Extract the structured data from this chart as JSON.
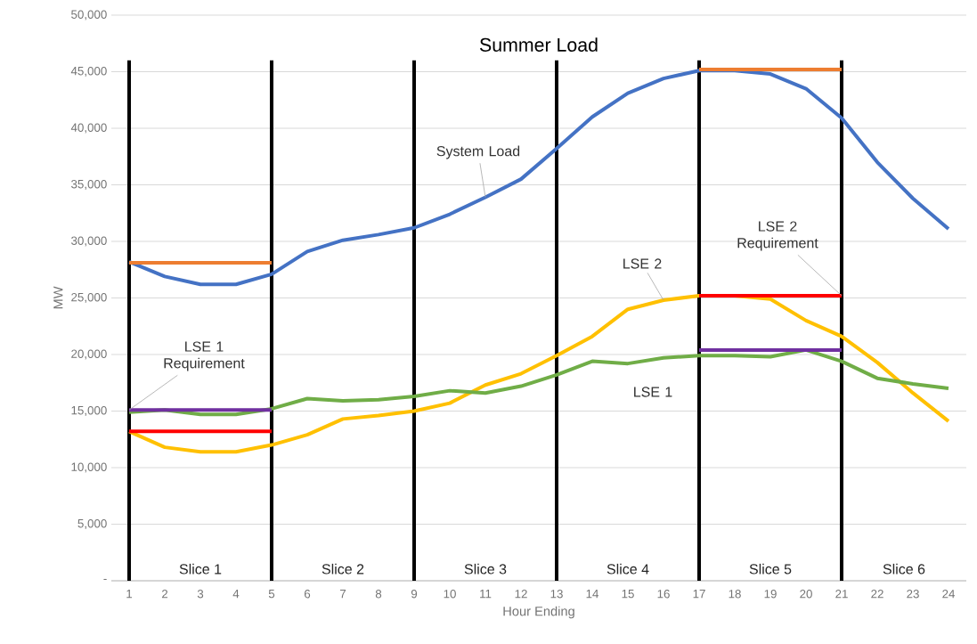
{
  "chart_data": {
    "type": "line",
    "title": "Summer Load",
    "xlabel": "Hour Ending",
    "ylabel": "MW",
    "x": [
      1,
      2,
      3,
      4,
      5,
      6,
      7,
      8,
      9,
      10,
      11,
      12,
      13,
      14,
      15,
      16,
      17,
      18,
      19,
      20,
      21,
      22,
      23,
      24
    ],
    "series": [
      {
        "name": "System Load",
        "color": "#4472c4",
        "values": [
          28200,
          26900,
          26200,
          26200,
          27100,
          29100,
          30100,
          30600,
          31200,
          32400,
          33900,
          35500,
          38200,
          41000,
          43100,
          44400,
          45100,
          45100,
          44800,
          43500,
          40900,
          37000,
          33800,
          31100
        ]
      },
      {
        "name": "LSE 2",
        "color": "#ffc000",
        "values": [
          13200,
          11800,
          11400,
          11400,
          12000,
          12900,
          14300,
          14600,
          15000,
          15700,
          17300,
          18300,
          19900,
          21600,
          24000,
          24800,
          25200,
          25200,
          24900,
          23000,
          21600,
          19300,
          16600,
          14100
        ]
      },
      {
        "name": "LSE 1",
        "color": "#70ad47",
        "values": [
          14900,
          15100,
          14700,
          14700,
          15200,
          16100,
          15900,
          16000,
          16300,
          16800,
          16600,
          17200,
          18200,
          19400,
          19200,
          19700,
          19900,
          19900,
          19800,
          20400,
          19400,
          17900,
          17400,
          17000
        ]
      },
      {
        "color": "#ed7d31",
        "x": [
          1,
          5
        ],
        "values": [
          28100,
          28100
        ]
      },
      {
        "color": "#ed7d31",
        "x": [
          17,
          21
        ],
        "values": [
          45200,
          45200
        ]
      },
      {
        "name": "LSE 1 Requirement",
        "color": "#7030a0",
        "x": [
          1,
          5
        ],
        "values": [
          15100,
          15100
        ]
      },
      {
        "color": "#7030a0",
        "x": [
          17,
          21
        ],
        "values": [
          20400,
          20400
        ]
      },
      {
        "color": "#ff0000",
        "x": [
          1,
          5
        ],
        "values": [
          13200,
          13200
        ]
      },
      {
        "name": "LSE 2 Requirement",
        "color": "#ff0000",
        "x": [
          17,
          21
        ],
        "values": [
          25200,
          25200
        ]
      }
    ],
    "xlim": [
      0.5,
      24.5
    ],
    "xticks": [
      1,
      2,
      3,
      4,
      5,
      6,
      7,
      8,
      9,
      10,
      11,
      12,
      13,
      14,
      15,
      16,
      17,
      18,
      19,
      20,
      21,
      22,
      23,
      24
    ],
    "ylim": [
      0,
      50000
    ],
    "yticks": [
      {
        "value": 0,
        "label": "-"
      },
      {
        "value": 5000,
        "label": "5,000"
      },
      {
        "value": 10000,
        "label": "10,000"
      },
      {
        "value": 15000,
        "label": "15,000"
      },
      {
        "value": 20000,
        "label": "20,000"
      },
      {
        "value": 25000,
        "label": "25,000"
      },
      {
        "value": 30000,
        "label": "30,000"
      },
      {
        "value": 35000,
        "label": "35,000"
      },
      {
        "value": 40000,
        "label": "40,000"
      },
      {
        "value": 45000,
        "label": "45,000"
      },
      {
        "value": 50000,
        "label": "50,000"
      }
    ],
    "grid": "y",
    "marker": "none",
    "line_style": "solid",
    "ref_lines": [
      {
        "axis": "x",
        "value": 1,
        "color": "#000000"
      },
      {
        "axis": "x",
        "value": 5,
        "color": "#000000"
      },
      {
        "axis": "x",
        "value": 9,
        "color": "#000000"
      },
      {
        "axis": "x",
        "value": 13,
        "color": "#000000"
      },
      {
        "axis": "x",
        "value": 17,
        "color": "#000000"
      },
      {
        "axis": "x",
        "value": 21,
        "color": "#000000"
      }
    ],
    "annotations": [
      "Slice 1",
      "Slice 2",
      "Slice 3",
      "Slice 4",
      "Slice 5",
      "Slice 6"
    ]
  }
}
